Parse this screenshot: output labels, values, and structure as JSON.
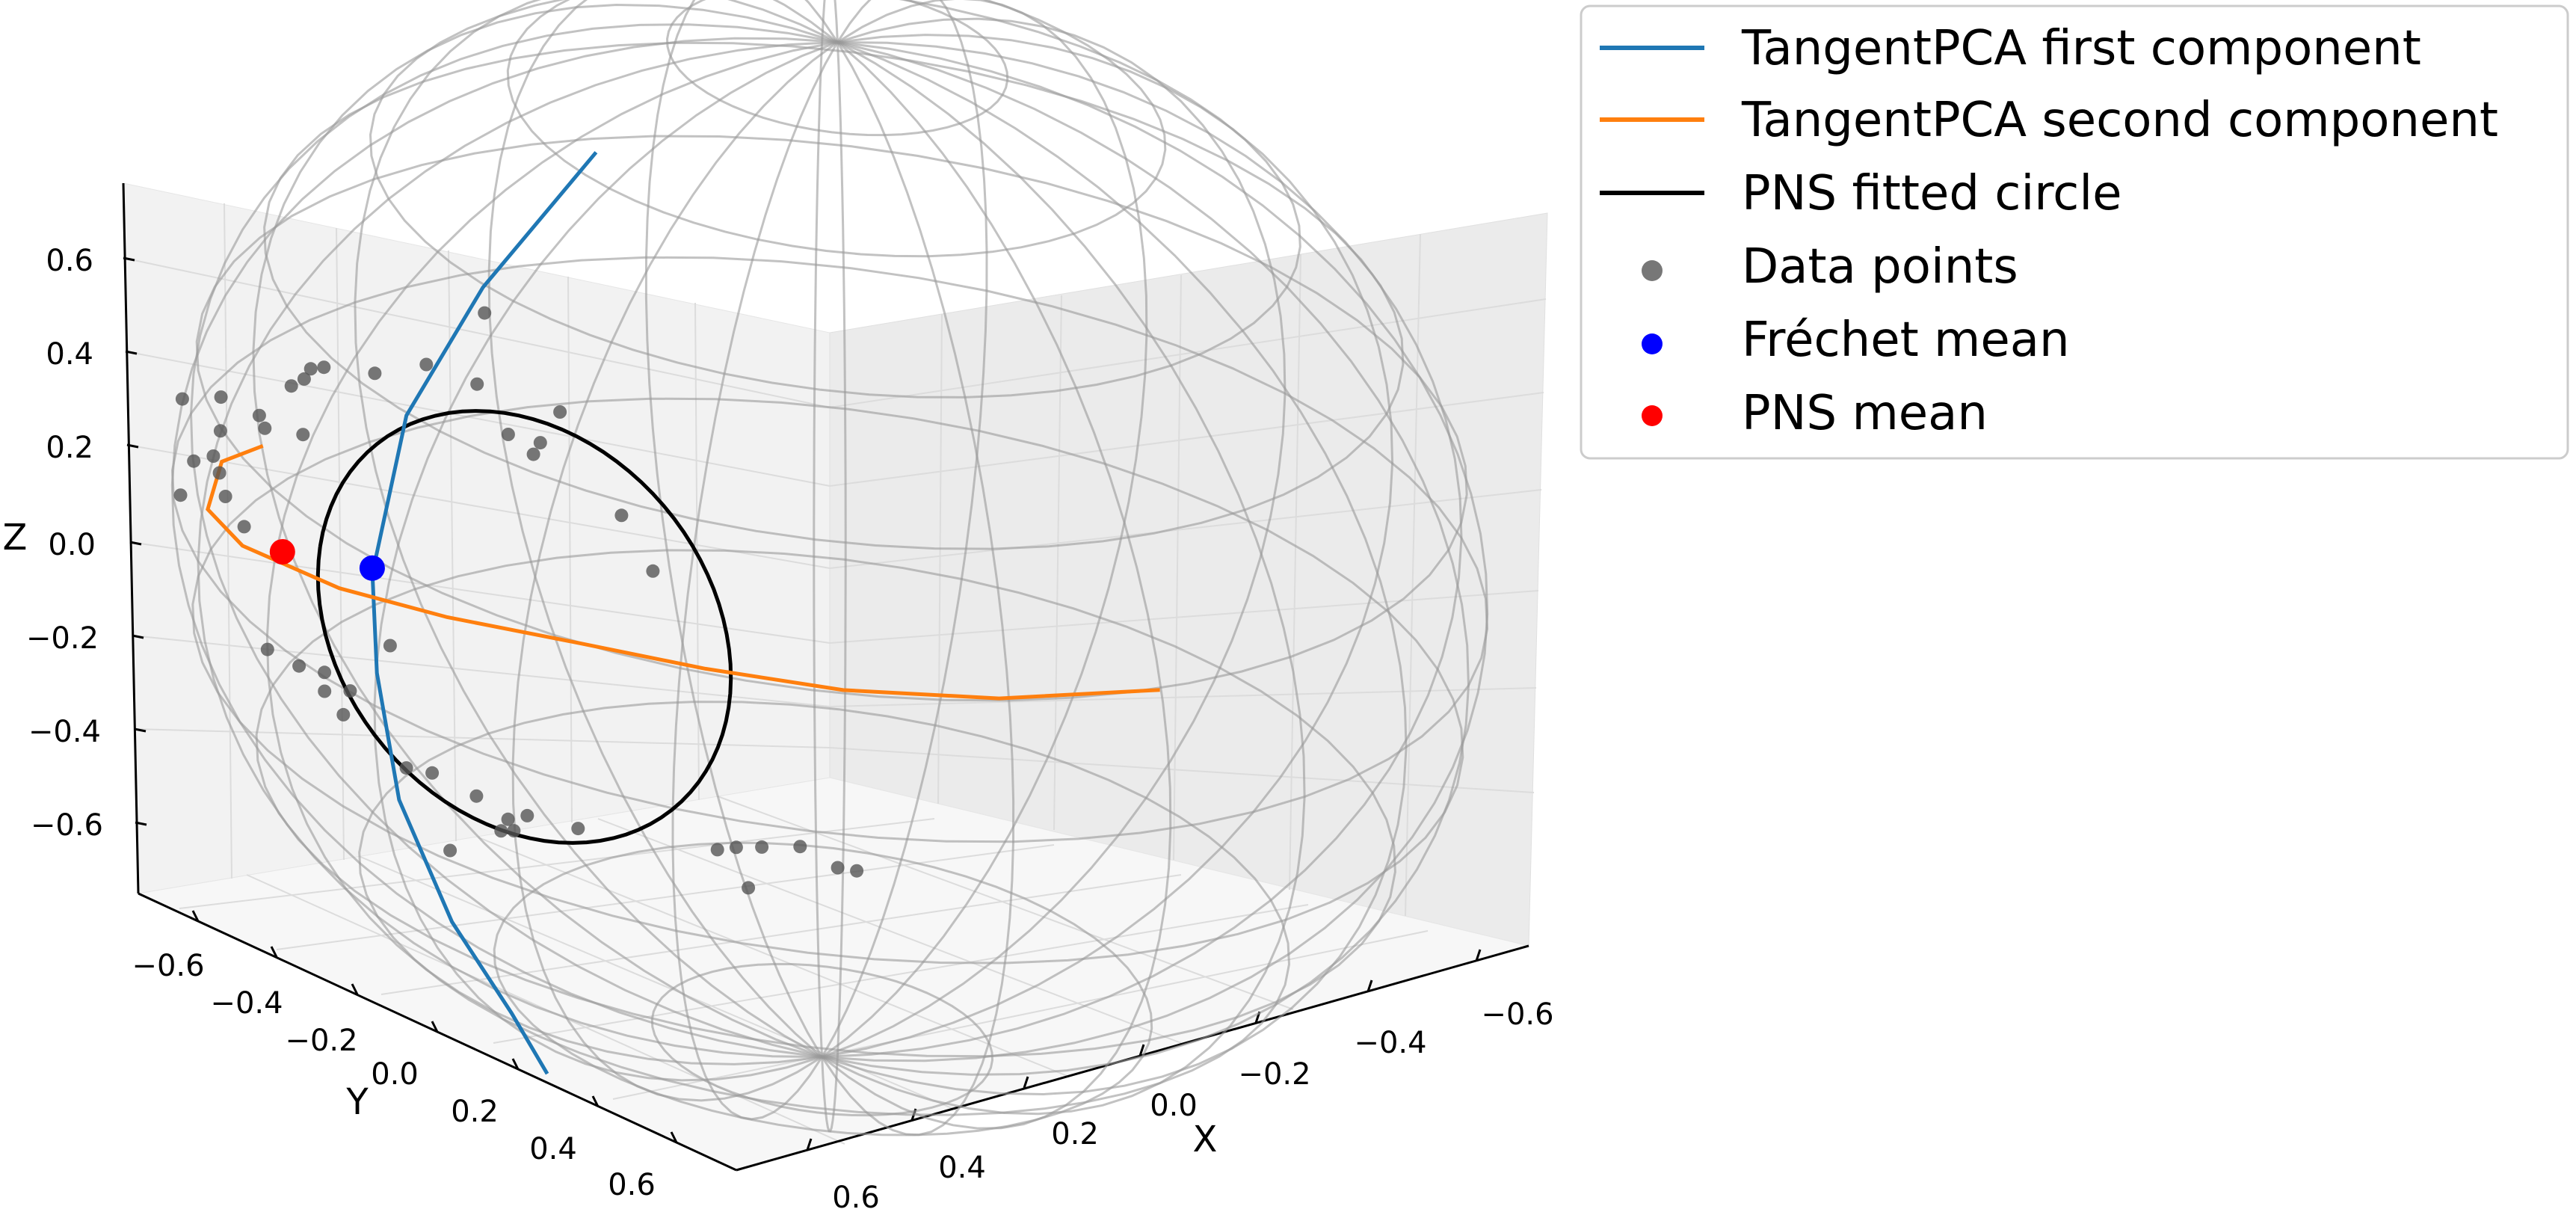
{
  "chart_data": {
    "type": "scatter",
    "projection": "3d",
    "title": "",
    "xlabel": "X",
    "ylabel": "Y",
    "zlabel": "Z",
    "xlim": [
      -0.75,
      0.75
    ],
    "ylim": [
      -0.75,
      0.75
    ],
    "zlim": [
      -0.75,
      0.75
    ],
    "x_ticks": [
      "0.6",
      "0.4",
      "0.2",
      "0.0",
      "−0.2",
      "−0.4",
      "−0.6"
    ],
    "y_ticks": [
      "−0.6",
      "−0.4",
      "−0.2",
      "0.0",
      "0.2",
      "0.4",
      "0.6"
    ],
    "z_ticks": [
      "0.6",
      "0.4",
      "0.2",
      "0.0",
      "−0.2",
      "−0.4",
      "−0.6"
    ],
    "grid": true,
    "sphere": {
      "radius": 0.75,
      "wireframe_color": "#999999"
    },
    "legend": {
      "position": "outside-top-right",
      "entries": [
        {
          "label": "TangentPCA first component",
          "kind": "line",
          "color": "#1f77b4"
        },
        {
          "label": "TangentPCA second component",
          "kind": "line",
          "color": "#ff7f0e"
        },
        {
          "label": "PNS fitted circle",
          "kind": "line",
          "color": "#000000"
        },
        {
          "label": "Data points",
          "kind": "marker",
          "color": "#555555"
        },
        {
          "label": "Fréchet mean",
          "kind": "marker",
          "color": "#0000ff"
        },
        {
          "label": "PNS mean",
          "kind": "marker",
          "color": "#ff0000"
        }
      ]
    },
    "series": [
      {
        "name": "TangentPCA first component",
        "type": "line",
        "color": "#1f77b4",
        "points": [
          [
            0.45,
            0.05,
            0.75
          ],
          [
            0.56,
            -0.02,
            0.55
          ],
          [
            0.62,
            -0.08,
            0.35
          ],
          [
            0.63,
            -0.12,
            0.1
          ],
          [
            0.62,
            -0.12,
            -0.05
          ],
          [
            0.58,
            -0.12,
            -0.25
          ],
          [
            0.5,
            -0.11,
            -0.45
          ],
          [
            0.42,
            -0.09,
            -0.6
          ],
          [
            0.37,
            -0.08,
            -0.7
          ]
        ]
      },
      {
        "name": "TangentPCA second component",
        "type": "line",
        "color": "#ff7f0e",
        "points": [
          [
            0.2,
            0.71,
            0.2
          ],
          [
            0.35,
            0.6,
            0.18
          ],
          [
            0.45,
            0.45,
            0.15
          ],
          [
            0.52,
            0.3,
            0.13
          ],
          [
            0.57,
            0.15,
            0.11
          ],
          [
            0.6,
            -0.03,
            0.07
          ],
          [
            0.6,
            -0.2,
            0.03
          ],
          [
            0.55,
            -0.4,
            -0.02
          ],
          [
            0.45,
            -0.55,
            -0.07
          ],
          [
            0.28,
            -0.69,
            -0.12
          ],
          [
            0.17,
            -0.73,
            -0.15
          ]
        ]
      },
      {
        "name": "PNS fitted circle",
        "type": "circle",
        "color": "#000000",
        "center": [
          0.62,
          0.11,
          0.13
        ],
        "radius": 0.28
      },
      {
        "name": "Data points",
        "type": "scatter",
        "color": "#555555",
        "points": [
          [
            0.62,
            0.04,
            0.56
          ],
          [
            0.63,
            0.17,
            0.48
          ],
          [
            0.62,
            0.03,
            0.45
          ],
          [
            0.63,
            0.14,
            0.42
          ],
          [
            0.62,
            -0.05,
            0.44
          ],
          [
            0.62,
            0.08,
            0.4
          ],
          [
            0.61,
            0.25,
            0.36
          ],
          [
            0.62,
            0.12,
            0.39
          ],
          [
            0.61,
            -0.14,
            0.38
          ],
          [
            0.61,
            -0.22,
            0.35
          ],
          [
            0.6,
            -0.25,
            0.33
          ],
          [
            0.6,
            -0.26,
            0.31
          ],
          [
            0.6,
            -0.28,
            0.29
          ],
          [
            0.62,
            0.31,
            0.31
          ],
          [
            0.61,
            -0.32,
            0.23
          ],
          [
            0.6,
            -0.39,
            0.22
          ],
          [
            0.59,
            -0.27,
            0.22
          ],
          [
            0.59,
            -0.33,
            0.2
          ],
          [
            0.6,
            -0.39,
            0.17
          ],
          [
            0.59,
            -0.46,
            0.18
          ],
          [
            0.59,
            -0.41,
            0.12
          ],
          [
            0.59,
            -0.4,
            0.1
          ],
          [
            0.58,
            -0.45,
            0.09
          ],
          [
            0.59,
            -0.39,
            0.07
          ],
          [
            0.59,
            -0.36,
            0.04
          ],
          [
            0.58,
            -0.47,
            0.03
          ],
          [
            0.62,
            -0.1,
            0.0
          ],
          [
            0.56,
            0.58,
            -0.02
          ],
          [
            0.56,
            0.55,
            -0.03
          ],
          [
            0.57,
            0.5,
            -0.02
          ],
          [
            0.57,
            0.44,
            -0.05
          ],
          [
            0.57,
            0.4,
            -0.07
          ],
          [
            0.58,
            0.38,
            -0.08
          ],
          [
            0.57,
            0.42,
            -0.12
          ],
          [
            0.6,
            0.18,
            -0.14
          ],
          [
            0.6,
            0.1,
            -0.16
          ],
          [
            0.6,
            0.07,
            -0.18
          ],
          [
            0.6,
            0.02,
            -0.17
          ],
          [
            0.6,
            -0.05,
            -0.17
          ],
          [
            0.59,
            0.07,
            -0.2
          ],
          [
            0.59,
            0.05,
            -0.21
          ],
          [
            0.59,
            -0.1,
            -0.19
          ],
          [
            0.59,
            -0.2,
            -0.16
          ],
          [
            0.59,
            -0.23,
            -0.14
          ],
          [
            0.58,
            -0.28,
            -0.13
          ],
          [
            0.59,
            -0.19,
            -0.12
          ],
          [
            0.58,
            -0.24,
            -0.12
          ],
          [
            0.58,
            -0.33,
            -0.13
          ],
          [
            0.6,
            -0.02,
            -0.27
          ]
        ]
      },
      {
        "name": "Fréchet mean",
        "type": "point",
        "color": "#0000ff",
        "point": [
          0.62,
          -0.13,
          0.1
        ]
      },
      {
        "name": "PNS mean",
        "type": "point",
        "color": "#ff0000",
        "point": [
          0.6,
          -0.29,
          0.04
        ]
      }
    ]
  }
}
